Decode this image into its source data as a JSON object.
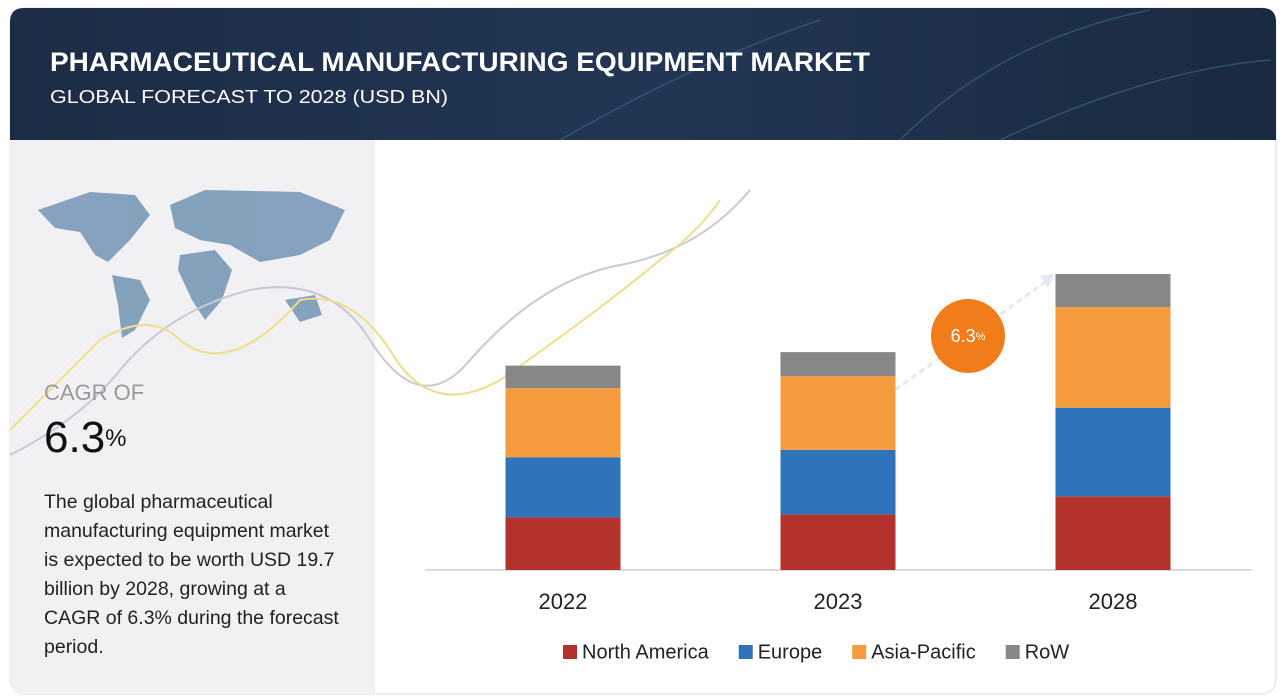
{
  "chart_data": {
    "type": "bar",
    "stacked": true,
    "title": "PHARMACEUTICAL MANUFACTURING EQUIPMENT MARKET",
    "subtitle": "GLOBAL FORECAST TO 2028 (USD BN)",
    "categories": [
      "2022",
      "2023",
      "2028"
    ],
    "series": [
      {
        "name": "North America",
        "color": "#b3322c",
        "values": [
          3.5,
          3.7,
          4.9
        ]
      },
      {
        "name": "Europe",
        "color": "#2f74bb",
        "values": [
          4.0,
          4.3,
          5.9
        ]
      },
      {
        "name": "Asia-Pacific",
        "color": "#f59b3d",
        "values": [
          4.6,
          4.9,
          6.7
        ]
      },
      {
        "name": "RoW",
        "color": "#878787",
        "values": [
          1.5,
          1.6,
          2.2
        ]
      }
    ],
    "annotation": {
      "value": "6.3",
      "unit": "%"
    }
  },
  "sidebar": {
    "cagr_label": "CAGR OF",
    "cagr_value": "6.3",
    "cagr_unit": "%",
    "description": "The global pharmaceutical manufacturing equipment market is expected to be worth USD 19.7 billion by 2028, growing at a CAGR of 6.3% during the forecast period."
  }
}
